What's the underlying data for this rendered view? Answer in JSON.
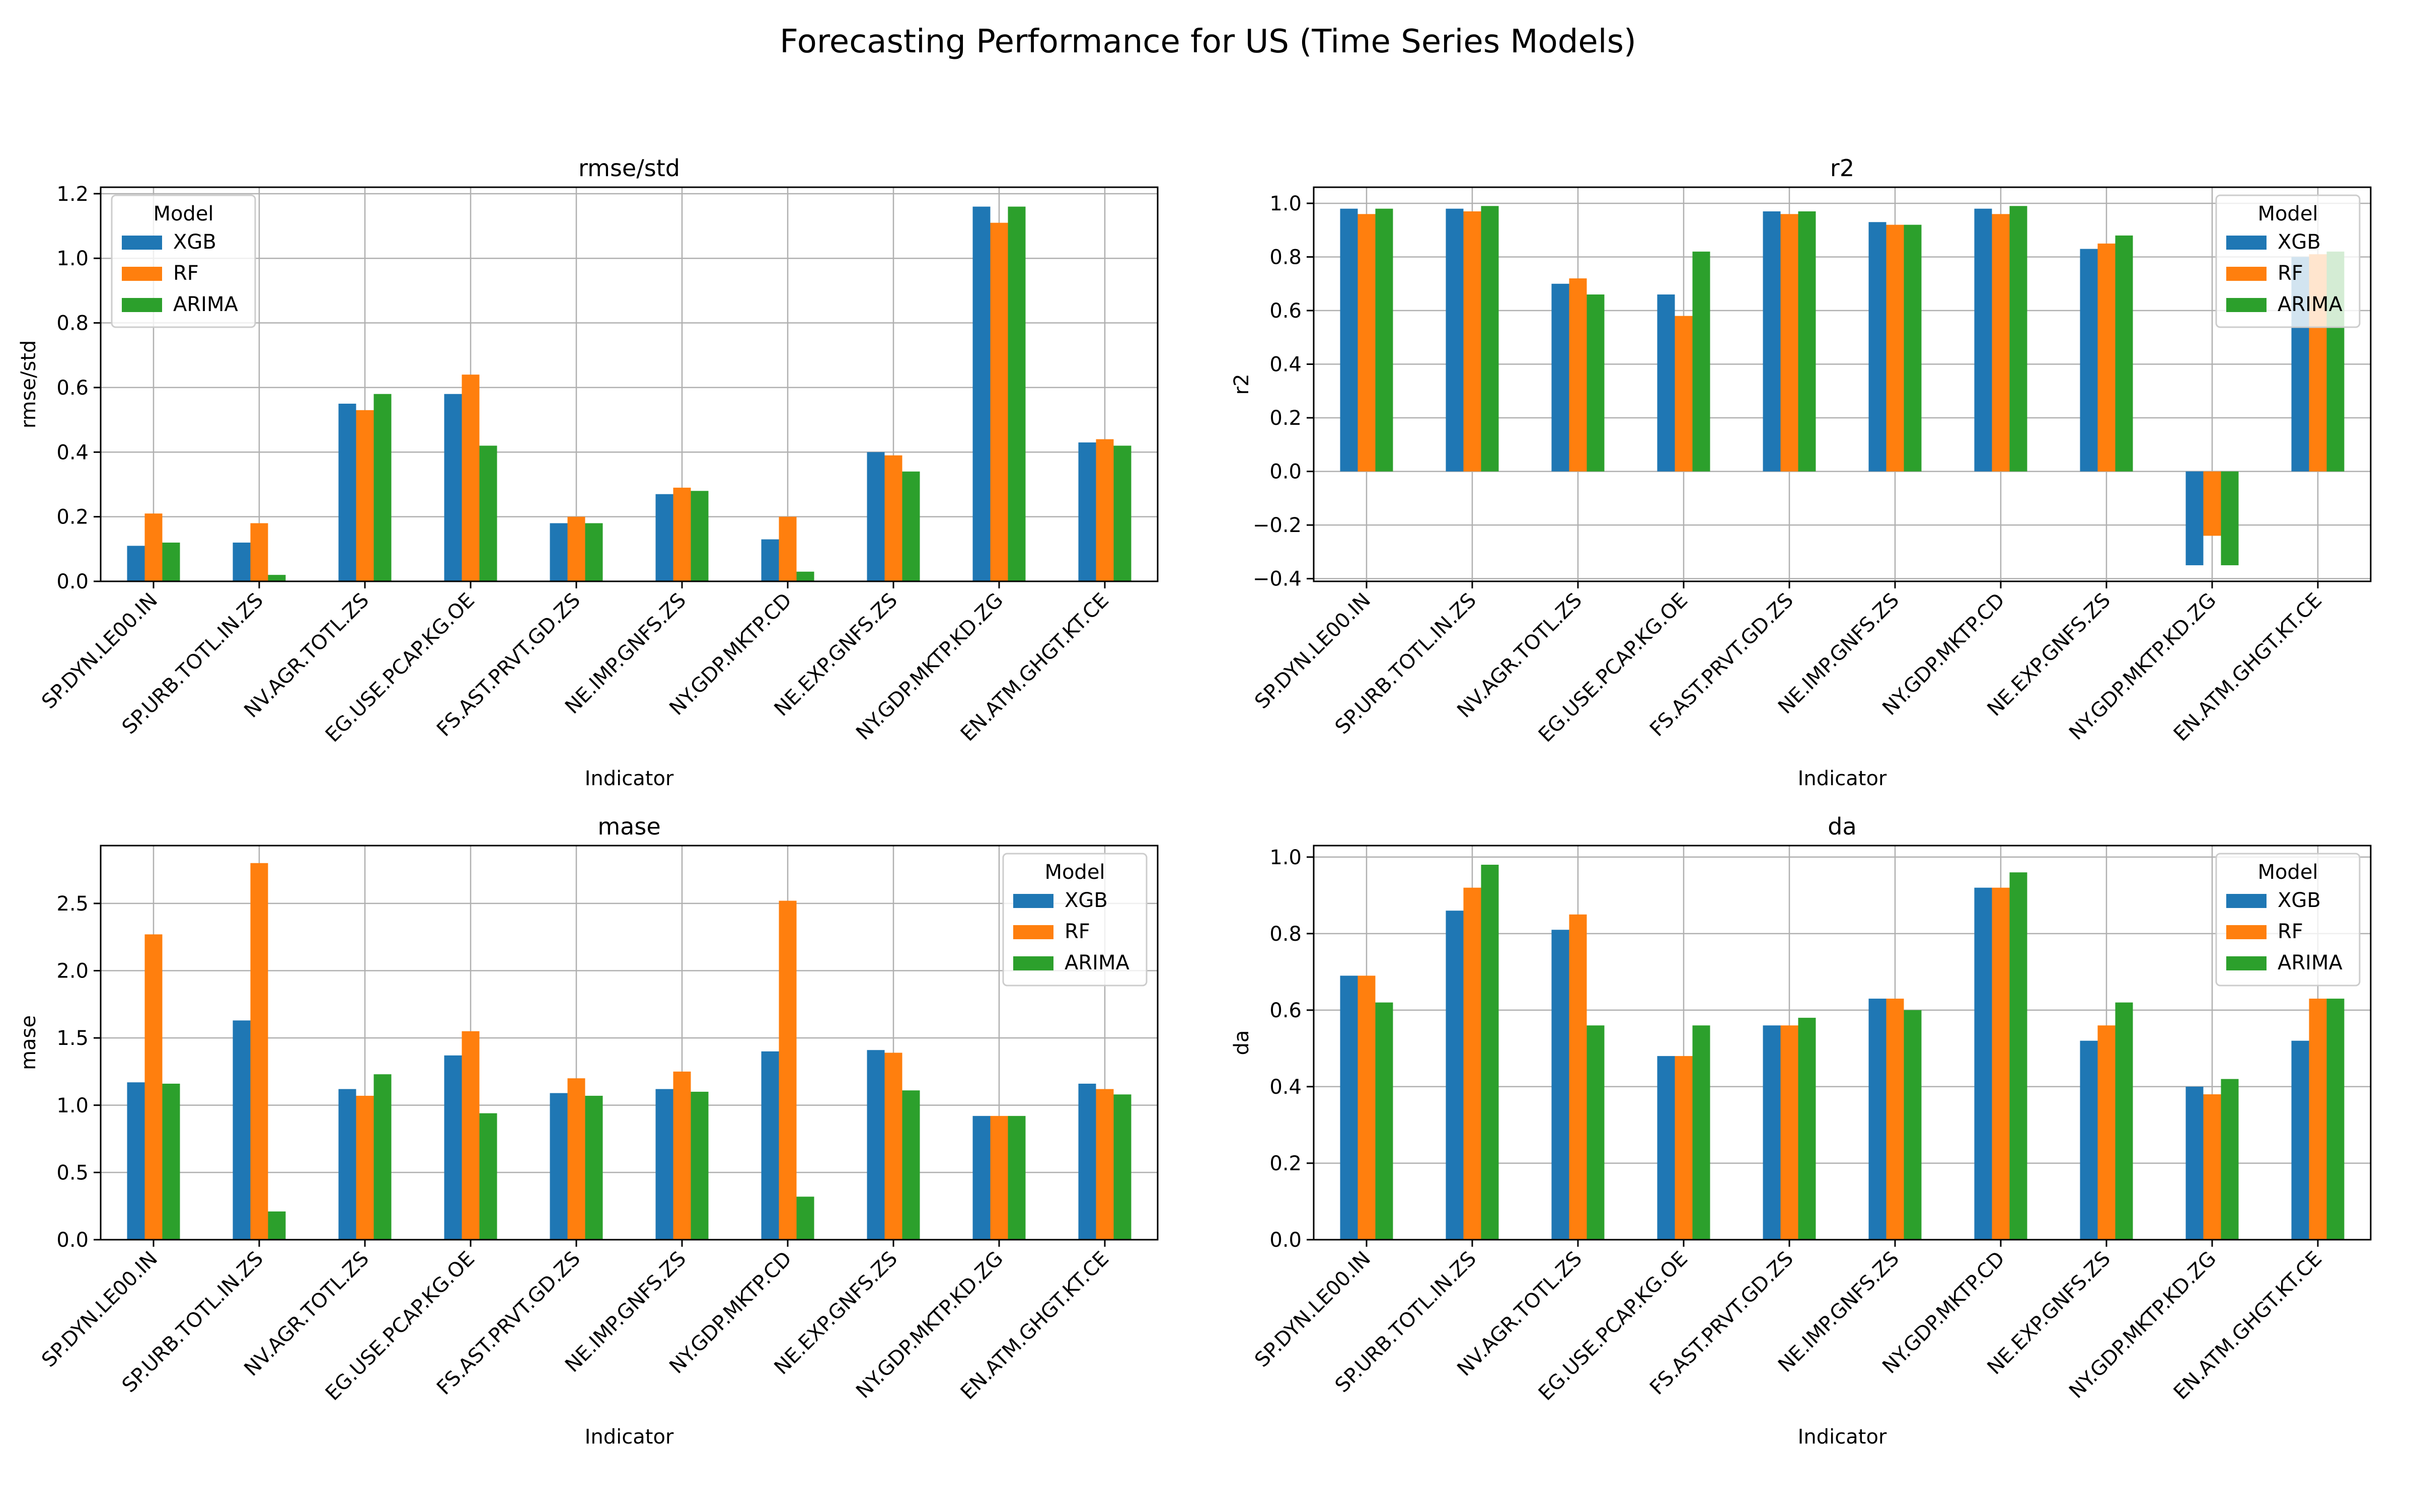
{
  "figure": {
    "title": "Forecasting Performance for US (Time Series Models)"
  },
  "colors": {
    "XGB": "#1f77b4",
    "RF": "#ff7f0e",
    "ARIMA": "#2ca02c",
    "grid": "#b0b0b0"
  },
  "chart_data": [
    {
      "type": "bar",
      "title": "rmse/std",
      "xlabel": "Indicator",
      "ylabel": "rmse/std",
      "categories": [
        "SP.DYN.LE00.IN",
        "SP.URB.TOTL.IN.ZS",
        "NV.AGR.TOTL.ZS",
        "EG.USE.PCAP.KG.OE",
        "FS.AST.PRVT.GD.ZS",
        "NE.IMP.GNFS.ZS",
        "NY.GDP.MKTP.CD",
        "NE.EXP.GNFS.ZS",
        "NY.GDP.MKTP.KD.ZG",
        "EN.ATM.GHGT.KT.CE"
      ],
      "series": [
        {
          "name": "XGB",
          "values": [
            0.11,
            0.12,
            0.55,
            0.58,
            0.18,
            0.27,
            0.13,
            0.4,
            1.16,
            0.43
          ]
        },
        {
          "name": "RF",
          "values": [
            0.21,
            0.18,
            0.53,
            0.64,
            0.2,
            0.29,
            0.2,
            0.39,
            1.11,
            0.44
          ]
        },
        {
          "name": "ARIMA",
          "values": [
            0.12,
            0.02,
            0.58,
            0.42,
            0.18,
            0.28,
            0.03,
            0.34,
            1.16,
            0.42
          ]
        }
      ],
      "ylim": [
        0,
        1.22
      ],
      "yticks": [
        "0.0",
        "0.2",
        "0.4",
        "0.6",
        "0.8",
        "1.0",
        "1.2"
      ],
      "grid": true,
      "legend": {
        "title": "Model",
        "position": "upper-left"
      }
    },
    {
      "type": "bar",
      "title": "r2",
      "xlabel": "Indicator",
      "ylabel": "r2",
      "categories": [
        "SP.DYN.LE00.IN",
        "SP.URB.TOTL.IN.ZS",
        "NV.AGR.TOTL.ZS",
        "EG.USE.PCAP.KG.OE",
        "FS.AST.PRVT.GD.ZS",
        "NE.IMP.GNFS.ZS",
        "NY.GDP.MKTP.CD",
        "NE.EXP.GNFS.ZS",
        "NY.GDP.MKTP.KD.ZG",
        "EN.ATM.GHGT.KT.CE"
      ],
      "series": [
        {
          "name": "XGB",
          "values": [
            0.98,
            0.98,
            0.7,
            0.66,
            0.97,
            0.93,
            0.98,
            0.83,
            -0.35,
            0.8
          ]
        },
        {
          "name": "RF",
          "values": [
            0.96,
            0.97,
            0.72,
            0.58,
            0.96,
            0.92,
            0.96,
            0.85,
            -0.24,
            0.81
          ]
        },
        {
          "name": "ARIMA",
          "values": [
            0.98,
            0.99,
            0.66,
            0.82,
            0.97,
            0.92,
            0.99,
            0.88,
            -0.35,
            0.82
          ]
        }
      ],
      "ylim": [
        -0.41,
        1.06
      ],
      "yticks": [
        "−0.4",
        "−0.2",
        "0.0",
        "0.2",
        "0.4",
        "0.6",
        "0.8",
        "1.0"
      ],
      "grid": true,
      "legend": {
        "title": "Model",
        "position": "upper-right"
      }
    },
    {
      "type": "bar",
      "title": "mase",
      "xlabel": "Indicator",
      "ylabel": "mase",
      "categories": [
        "SP.DYN.LE00.IN",
        "SP.URB.TOTL.IN.ZS",
        "NV.AGR.TOTL.ZS",
        "EG.USE.PCAP.KG.OE",
        "FS.AST.PRVT.GD.ZS",
        "NE.IMP.GNFS.ZS",
        "NY.GDP.MKTP.CD",
        "NE.EXP.GNFS.ZS",
        "NY.GDP.MKTP.KD.ZG",
        "EN.ATM.GHGT.KT.CE"
      ],
      "series": [
        {
          "name": "XGB",
          "values": [
            1.17,
            1.63,
            1.12,
            1.37,
            1.09,
            1.12,
            1.4,
            1.41,
            0.92,
            1.16
          ]
        },
        {
          "name": "RF",
          "values": [
            2.27,
            2.8,
            1.07,
            1.55,
            1.2,
            1.25,
            2.52,
            1.39,
            0.92,
            1.12
          ]
        },
        {
          "name": "ARIMA",
          "values": [
            1.16,
            0.21,
            1.23,
            0.94,
            1.07,
            1.1,
            0.32,
            1.11,
            0.92,
            1.08
          ]
        }
      ],
      "ylim": [
        0,
        2.93
      ],
      "yticks": [
        "0.0",
        "0.5",
        "1.0",
        "1.5",
        "2.0",
        "2.5"
      ],
      "grid": true,
      "legend": {
        "title": "Model",
        "position": "upper-right"
      }
    },
    {
      "type": "bar",
      "title": "da",
      "xlabel": "Indicator",
      "ylabel": "da",
      "categories": [
        "SP.DYN.LE00.IN",
        "SP.URB.TOTL.IN.ZS",
        "NV.AGR.TOTL.ZS",
        "EG.USE.PCAP.KG.OE",
        "FS.AST.PRVT.GD.ZS",
        "NE.IMP.GNFS.ZS",
        "NY.GDP.MKTP.CD",
        "NE.EXP.GNFS.ZS",
        "NY.GDP.MKTP.KD.ZG",
        "EN.ATM.GHGT.KT.CE"
      ],
      "series": [
        {
          "name": "XGB",
          "values": [
            0.69,
            0.86,
            0.81,
            0.48,
            0.56,
            0.63,
            0.92,
            0.52,
            0.4,
            0.52
          ]
        },
        {
          "name": "RF",
          "values": [
            0.69,
            0.92,
            0.85,
            0.48,
            0.56,
            0.63,
            0.92,
            0.56,
            0.38,
            0.63
          ]
        },
        {
          "name": "ARIMA",
          "values": [
            0.62,
            0.98,
            0.56,
            0.56,
            0.58,
            0.6,
            0.96,
            0.62,
            0.42,
            0.63
          ]
        }
      ],
      "ylim": [
        0,
        1.03
      ],
      "yticks": [
        "0.0",
        "0.2",
        "0.4",
        "0.6",
        "0.8",
        "1.0"
      ],
      "grid": true,
      "legend": {
        "title": "Model",
        "position": "upper-right"
      }
    }
  ]
}
